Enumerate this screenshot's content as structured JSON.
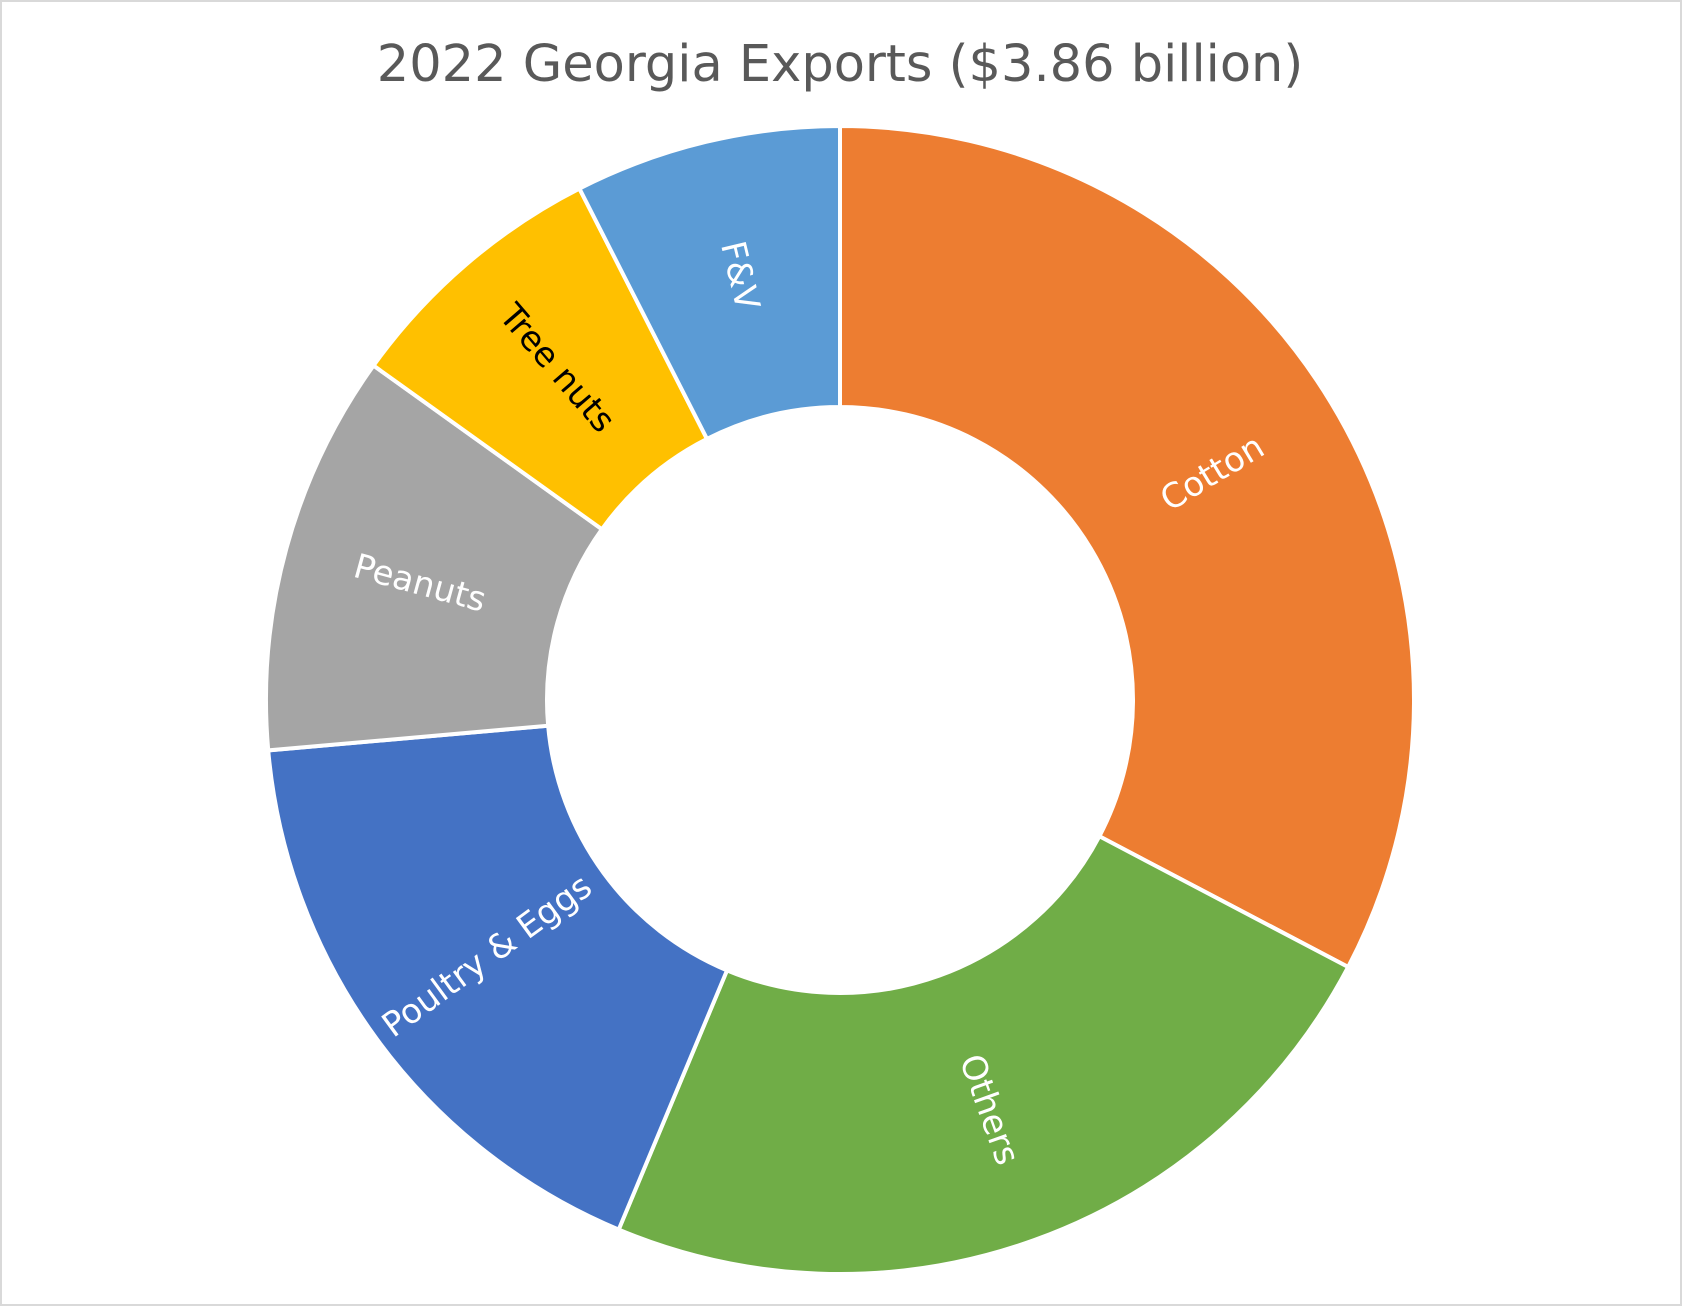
{
  "chart_data": {
    "type": "donut",
    "title": "2022 Georgia Exports ($3.86 billion)",
    "categories": [
      "Cotton",
      "Others",
      "Poultry & Eggs",
      "Peanuts",
      "Tree nuts",
      "F&V"
    ],
    "values": [
      32.7,
      23.6,
      17.3,
      11.3,
      7.6,
      7.5
    ],
    "colors": [
      "#ed7d31",
      "#70ad47",
      "#4472c4",
      "#a5a5a5",
      "#ffc000",
      "#5b9bd5"
    ],
    "label_colors": [
      "#ffffff",
      "#ffffff",
      "#ffffff",
      "#ffffff",
      "#000000",
      "#ffffff"
    ]
  }
}
